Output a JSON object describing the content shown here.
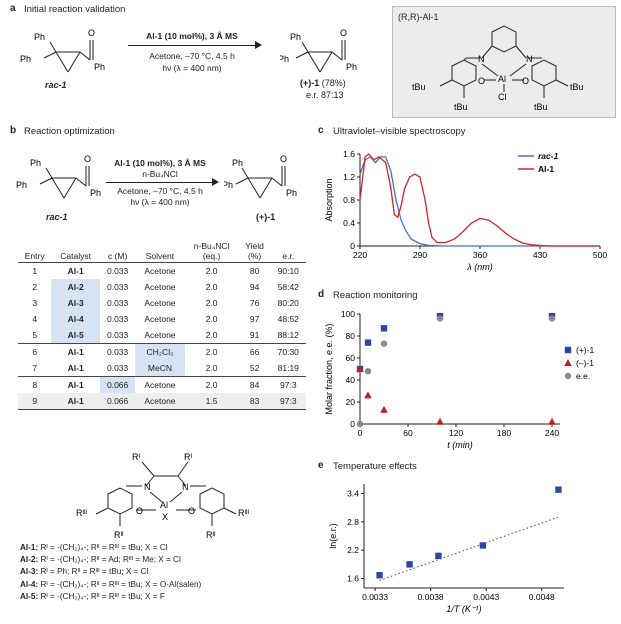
{
  "panel_a": {
    "letter": "a",
    "title": "Initial reaction validation",
    "reactant_label": "rac-1",
    "product_label": "(+)-1",
    "product_yield": "(78%)",
    "product_er": "e.r. 87:13",
    "cond_line1": "Al-1 (10 mol%), 3 Å MS",
    "cond_line2": "Acetone, –70 °C, 4.5 h",
    "cond_line3": "hν (λ = 400 nm)",
    "ph": "Ph",
    "catalyst_label": "(R,R)-Al-1",
    "catalyst_tbu": "tBu",
    "catalyst_n": "N",
    "catalyst_o": "O",
    "catalyst_al": "Al",
    "catalyst_cl": "Cl"
  },
  "panel_b": {
    "letter": "b",
    "title": "Reaction optimization",
    "cond_line1": "Al-1 (10 mol%), 3 Å MS",
    "cond_line2": "n-Bu₄NCl",
    "cond_line3": "Acetone, –70 °C, 4.5 h",
    "cond_line4": "hν (λ = 400 nm)",
    "reactant_label": "rac-1",
    "product_label": "(+)-1",
    "table_headers": [
      "Entry",
      "Catalyst",
      "c (M)",
      "Solvent",
      "n-Bu₄NCl (eq.)",
      "Yield (%)",
      "e.r."
    ],
    "rows": [
      [
        "1",
        "Al-1",
        "0.033",
        "Acetone",
        "2.0",
        "80",
        "90:10"
      ],
      [
        "2",
        "Al-2",
        "0.033",
        "Acetone",
        "2.0",
        "94",
        "58:42"
      ],
      [
        "3",
        "Al-3",
        "0.033",
        "Acetone",
        "2.0",
        "76",
        "80:20"
      ],
      [
        "4",
        "Al-4",
        "0.033",
        "Acetone",
        "2.0",
        "97",
        "48:52"
      ],
      [
        "5",
        "Al-5",
        "0.033",
        "Acetone",
        "2.0",
        "91",
        "88:12"
      ],
      [
        "6",
        "Al-1",
        "0.033",
        "CH₂Cl₂",
        "2.0",
        "66",
        "70:30"
      ],
      [
        "7",
        "Al-1",
        "0.033",
        "MeCN",
        "2.0",
        "52",
        "81:19"
      ],
      [
        "8",
        "Al-1",
        "0.066",
        "Acetone",
        "2.0",
        "84",
        "97:3"
      ],
      [
        "9",
        "Al-1",
        "0.066",
        "Acetone",
        "1.5",
        "83",
        "97:3"
      ]
    ],
    "general_structure": {
      "r1": "Rᴵ",
      "r2": "Rᴵᴵ",
      "r3": "Rᴵᴵᴵ",
      "n": "N",
      "o": "O",
      "al": "Al",
      "x": "X"
    },
    "definitions": [
      {
        "name": "Al-1:",
        "text": " Rᴵ = -(CH₂)₄-; Rᴵᴵ = Rᴵᴵᴵ = tBu; X = Cl"
      },
      {
        "name": "Al-2:",
        "text": " Rᴵ = -(CH₂)₄-; Rᴵᴵ = Ad; Rᴵᴵᴵ = Me; X = Cl"
      },
      {
        "name": "Al-3:",
        "text": " Rᴵ = Ph; Rᴵᴵ = Rᴵᴵᴵ = tBu; X = Cl"
      },
      {
        "name": "Al-4:",
        "text": " Rᴵ = -(CH₂)₄-; Rᴵᴵ = Rᴵᴵᴵ = tBu; X = O-Al(salen)"
      },
      {
        "name": "Al-5:",
        "text": " Rᴵ = -(CH₂)₄-; Rᴵᴵ = Rᴵᴵᴵ = tBu; X = F"
      }
    ]
  },
  "chart_data": [
    {
      "panel": "c",
      "title": "Ultraviolet–visible spectroscopy",
      "type": "line",
      "xlabel": "λ (nm)",
      "ylabel": "Absorption",
      "xlim": [
        220,
        500
      ],
      "ylim": [
        0,
        1.6
      ],
      "xticks": [
        220,
        290,
        360,
        430,
        500
      ],
      "yticks": [
        0,
        0.4,
        0.8,
        1.2,
        1.6
      ],
      "legend": "top-right",
      "series": [
        {
          "name": "rac-1",
          "color": "#4a6fc9",
          "x": [
            220,
            226,
            232,
            238,
            244,
            250,
            256,
            262,
            268,
            274,
            280,
            290,
            300,
            320,
            500
          ],
          "y": [
            1.25,
            1.5,
            1.55,
            1.45,
            1.55,
            1.55,
            1.3,
            0.8,
            0.45,
            0.25,
            0.12,
            0.04,
            0.01,
            0,
            0
          ]
        },
        {
          "name": "Al-1",
          "color": "#d4262b",
          "x": [
            220,
            226,
            230,
            236,
            242,
            250,
            256,
            260,
            264,
            268,
            272,
            278,
            284,
            290,
            296,
            300,
            304,
            310,
            320,
            330,
            340,
            350,
            360,
            370,
            380,
            390,
            400,
            410,
            420,
            430,
            440,
            500
          ],
          "y": [
            0.8,
            1.55,
            1.6,
            1.5,
            1.55,
            1.45,
            1.0,
            0.55,
            0.5,
            0.7,
            1.0,
            1.2,
            1.25,
            1.2,
            0.8,
            0.4,
            0.15,
            0.06,
            0.06,
            0.12,
            0.25,
            0.4,
            0.48,
            0.45,
            0.35,
            0.22,
            0.12,
            0.05,
            0.02,
            0.01,
            0,
            0
          ]
        }
      ]
    },
    {
      "panel": "d",
      "title": "Reaction monitoring",
      "type": "scatter",
      "xlabel": "t (min)",
      "ylabel": "Molar fraction, e.e. (%)",
      "xlim": [
        0,
        250
      ],
      "ylim": [
        0,
        100
      ],
      "xticks": [
        0,
        60,
        120,
        180,
        240
      ],
      "yticks": [
        0,
        20,
        40,
        60,
        80,
        100
      ],
      "legend": "right",
      "series": [
        {
          "name": "(+)-1",
          "color": "#2c46a6",
          "marker": "square",
          "x": [
            0,
            10,
            30,
            100,
            240
          ],
          "y": [
            50,
            74,
            87,
            98,
            98
          ]
        },
        {
          "name": "(–)-1",
          "color": "#c21d21",
          "marker": "triangle",
          "x": [
            0,
            10,
            30,
            100,
            240
          ],
          "y": [
            50,
            26,
            13,
            2,
            2
          ]
        },
        {
          "name": "e.e.",
          "color": "#888888",
          "marker": "circle",
          "x": [
            0,
            10,
            30,
            100,
            240
          ],
          "y": [
            0,
            48,
            73,
            96,
            96
          ]
        }
      ]
    },
    {
      "panel": "e",
      "title": "Temperature effects",
      "type": "scatter",
      "xlabel": "1/T (K⁻¹)",
      "ylabel": "ln(e.r.)",
      "xlim": [
        0.0032,
        0.005
      ],
      "ylim": [
        1.4,
        3.6
      ],
      "xticks": [
        "0.0033",
        "0.0038",
        "0.0043",
        "0.0048"
      ],
      "yticks": [
        "1.6",
        "2.2",
        "2.8",
        "3.4"
      ],
      "series": [
        {
          "name": "",
          "color": "#2c46a6",
          "marker": "square",
          "x": [
            0.00334,
            0.00361,
            0.00387,
            0.00427,
            0.00495
          ],
          "y": [
            1.67,
            1.9,
            2.08,
            2.3,
            3.48
          ]
        }
      ],
      "trendline": {
        "style": "dotted",
        "color": "#2c46a6",
        "x": [
          0.00334,
          0.00495
        ],
        "y": [
          1.56,
          2.9
        ]
      }
    }
  ]
}
